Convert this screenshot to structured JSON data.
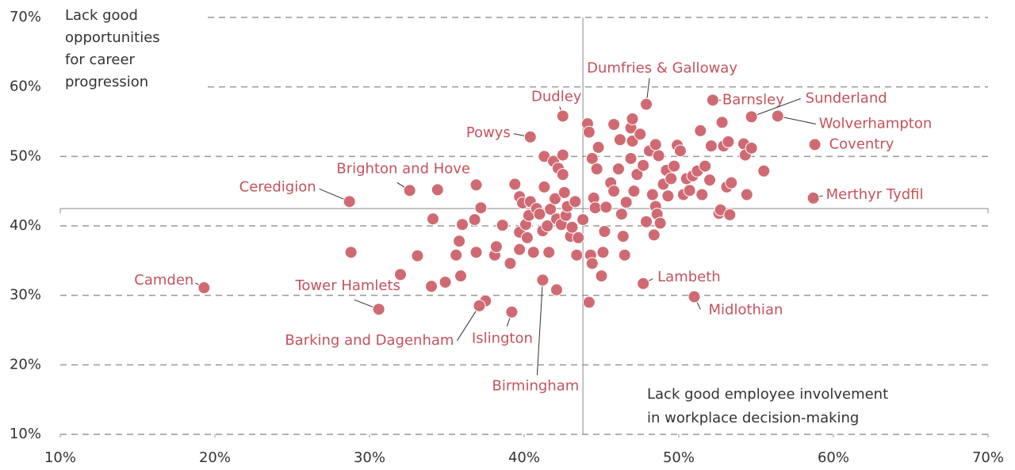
{
  "chart_data": {
    "type": "scatter",
    "y_annotation": [
      "Lack good",
      "opportunities",
      "for career",
      "progression"
    ],
    "x_annotation": [
      "Lack good employee involvement",
      "in workplace decision-making"
    ],
    "xlim": [
      10,
      70
    ],
    "ylim": [
      10,
      70
    ],
    "xticks": [
      {
        "value": 10,
        "label": "10%"
      },
      {
        "value": 20,
        "label": "20%"
      },
      {
        "value": 30,
        "label": "30%"
      },
      {
        "value": 40,
        "label": "40%"
      },
      {
        "value": 50,
        "label": "50%"
      },
      {
        "value": 60,
        "label": "60%"
      },
      {
        "value": 70,
        "label": "70%"
      }
    ],
    "yticks": [
      {
        "value": 10,
        "label": "10%"
      },
      {
        "value": 20,
        "label": "20%"
      },
      {
        "value": 30,
        "label": "30%"
      },
      {
        "value": 40,
        "label": "40%"
      },
      {
        "value": 50,
        "label": "50%"
      },
      {
        "value": 60,
        "label": "60%"
      },
      {
        "value": 70,
        "label": "70%"
      }
    ],
    "x_average": 43.8,
    "y_average": 42.5,
    "grid": true,
    "color": "#d06a72",
    "label_color": "#c4525c",
    "labeled_points": {
      "labels": [
        "Camden",
        "Ceredigion",
        "Brighton and Hove",
        "Tower Hamlets",
        "Barking and Dagenham",
        "Islington",
        "Birmingham",
        "Powys",
        "Dudley",
        "Dumfries & Galloway",
        "Barnsley",
        "Sunderland",
        "Wolverhampton",
        "Coventry",
        "Merthyr Tydfil",
        "Lambeth",
        "Midlothian"
      ],
      "x": [
        19.3,
        28.7,
        32.6,
        30.6,
        37.1,
        39.2,
        41.2,
        40.4,
        42.5,
        47.9,
        52.2,
        54.7,
        56.4,
        58.8,
        58.7,
        47.7,
        51.0
      ],
      "y": [
        31.1,
        43.5,
        45.1,
        28.0,
        28.5,
        27.6,
        32.2,
        52.8,
        55.8,
        57.5,
        58.1,
        55.7,
        55.8,
        51.7,
        44.0,
        31.7,
        29.8
      ]
    },
    "points": {
      "x": [
        28.8,
        33.1,
        32.0,
        34.0,
        34.9,
        35.9,
        34.1,
        34.4,
        35.8,
        35.6,
        36.0,
        36.9,
        36.9,
        36.8,
        37.2,
        37.5,
        38.1,
        38.2,
        38.6,
        39.1,
        39.4,
        39.7,
        39.7,
        39.7,
        39.9,
        40.1,
        40.2,
        40.3,
        40.4,
        40.6,
        40.8,
        41.0,
        41.2,
        41.3,
        41.3,
        41.5,
        41.6,
        41.7,
        41.9,
        42.0,
        42.1,
        42.1,
        42.2,
        42.4,
        42.5,
        42.5,
        42.6,
        42.7,
        42.8,
        43.0,
        43.1,
        43.3,
        43.4,
        43.5,
        43.8,
        44.1,
        44.2,
        44.3,
        44.4,
        44.4,
        44.5,
        44.6,
        44.7,
        44.8,
        45.0,
        45.1,
        45.2,
        45.3,
        45.6,
        45.8,
        45.8,
        46.1,
        46.3,
        46.4,
        46.5,
        46.6,
        46.9,
        46.9,
        47.0,
        47.1,
        47.3,
        47.5,
        47.7,
        47.9,
        48.1,
        48.3,
        48.4,
        48.5,
        48.6,
        48.7,
        48.8,
        49.0,
        49.2,
        49.3,
        49.5,
        49.7,
        49.9,
        50.1,
        50.3,
        50.5,
        50.7,
        50.9,
        51.2,
        51.4,
        51.5,
        51.7,
        52.0,
        52.1,
        52.6,
        52.7,
        52.8,
        52.9,
        53.1,
        53.2,
        53.3,
        53.4,
        54.2,
        54.3,
        54.4,
        54.7,
        55.5,
        47.0,
        48.5,
        44.2,
        46.2
      ],
      "y": [
        36.2,
        35.7,
        33.0,
        31.3,
        31.9,
        32.8,
        41.0,
        45.2,
        37.8,
        35.8,
        40.2,
        36.2,
        45.9,
        40.9,
        42.6,
        29.2,
        35.8,
        37.0,
        40.1,
        34.6,
        46.0,
        39.1,
        36.6,
        44.2,
        43.3,
        40.2,
        38.3,
        41.5,
        43.5,
        36.2,
        42.5,
        41.7,
        39.3,
        45.6,
        50.0,
        40.0,
        36.2,
        42.4,
        49.3,
        43.9,
        30.8,
        41.0,
        48.3,
        40.2,
        47.4,
        50.2,
        44.8,
        41.5,
        42.8,
        38.5,
        39.8,
        43.5,
        35.8,
        38.3,
        40.9,
        54.7,
        29.0,
        35.8,
        49.7,
        34.6,
        44.0,
        42.6,
        48.2,
        51.3,
        32.8,
        36.2,
        39.2,
        42.7,
        46.2,
        54.6,
        45.0,
        48.2,
        41.7,
        38.5,
        35.8,
        43.4,
        54.1,
        49.7,
        52.2,
        45.0,
        47.4,
        53.2,
        48.7,
        40.6,
        50.8,
        44.5,
        38.7,
        42.8,
        41.7,
        50.1,
        40.4,
        46.0,
        48.0,
        44.3,
        46.8,
        48.6,
        51.6,
        50.8,
        44.5,
        46.8,
        45.1,
        47.2,
        47.9,
        53.7,
        44.5,
        48.6,
        46.6,
        51.5,
        41.8,
        42.3,
        54.9,
        51.5,
        45.6,
        52.1,
        41.6,
        46.2,
        51.8,
        50.2,
        44.5,
        51.2,
        47.9,
        55.4,
        51.7,
        53.5,
        52.4
      ]
    }
  }
}
